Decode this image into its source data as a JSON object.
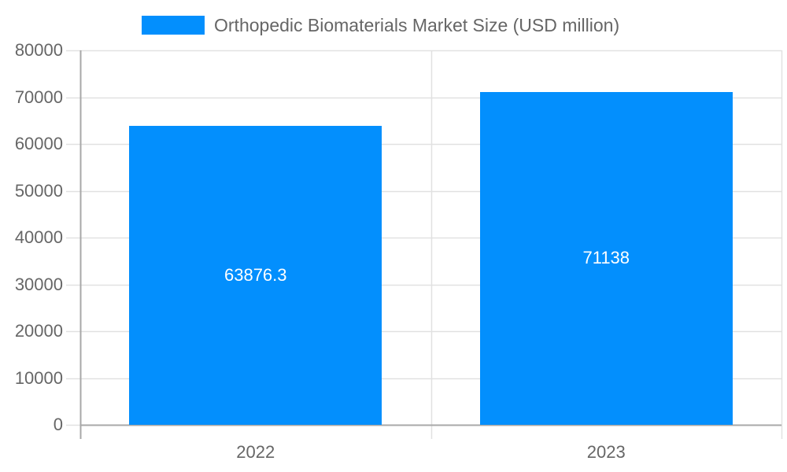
{
  "chart_data": {
    "type": "bar",
    "title": "",
    "legend": [
      {
        "label": "Orthopedic Biomaterials Market Size (USD million)",
        "color": "#038ffd"
      }
    ],
    "legend_position": "top",
    "categories": [
      "2022",
      "2023"
    ],
    "series": [
      {
        "name": "Orthopedic Biomaterials Market Size (USD million)",
        "values": [
          63876.3,
          71138
        ],
        "color": "#038ffd"
      }
    ],
    "data_labels": [
      "63876.3",
      "71138"
    ],
    "xlabel": "",
    "ylabel": "",
    "ylim": [
      0,
      80000
    ],
    "yticks": [
      "0",
      "10000",
      "20000",
      "30000",
      "40000",
      "50000",
      "60000",
      "70000",
      "80000"
    ],
    "grid": true
  },
  "legend": {
    "label": "Orthopedic Biomaterials Market Size (USD million)"
  }
}
